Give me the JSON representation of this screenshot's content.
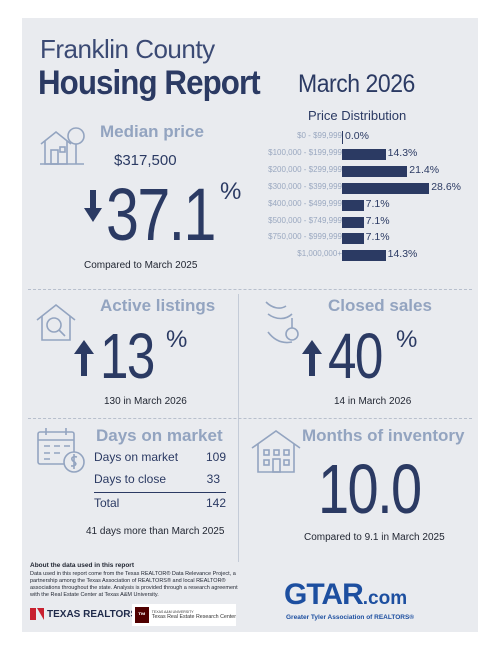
{
  "header": {
    "county": "Franklin County",
    "report": "Housing Report",
    "month": "March 2026"
  },
  "price_distribution": {
    "title": "Price Distribution",
    "rows": [
      {
        "label": "$0 - $99,999",
        "value": "0.0%",
        "pct": 0.0
      },
      {
        "label": "$100,000 - $199,999",
        "value": "14.3%",
        "pct": 14.3
      },
      {
        "label": "$200,000 - $299,999",
        "value": "21.4%",
        "pct": 21.4
      },
      {
        "label": "$300,000 - $399,999",
        "value": "28.6%",
        "pct": 28.6
      },
      {
        "label": "$400,000 - $499,999",
        "value": "7.1%",
        "pct": 7.1
      },
      {
        "label": "$500,000 - $749,999",
        "value": "7.1%",
        "pct": 7.1
      },
      {
        "label": "$750,000 - $999,999",
        "value": "7.1%",
        "pct": 7.1
      },
      {
        "label": "$1,000,000+",
        "value": "14.3%",
        "pct": 14.3
      }
    ]
  },
  "median_price": {
    "title": "Median price",
    "value": "$317,500",
    "change": "37.1",
    "unit": "%",
    "direction": "down",
    "caption": "Compared to March 2025"
  },
  "active_listings": {
    "title": "Active listings",
    "change": "13",
    "unit": "%",
    "direction": "up",
    "caption": "130 in March 2026"
  },
  "closed_sales": {
    "title": "Closed sales",
    "change": "40",
    "unit": "%",
    "direction": "up",
    "caption": "14 in March 2026"
  },
  "days_on_market": {
    "title": "Days on market",
    "rows": [
      {
        "label": "Days on market",
        "value": "109"
      },
      {
        "label": "Days to close",
        "value": "33"
      }
    ],
    "total_label": "Total",
    "total_value": "142",
    "caption": "41 days more than March 2025"
  },
  "months_inventory": {
    "title": "Months of inventory",
    "value": "10.0",
    "caption": "Compared to 9.1 in March 2025"
  },
  "about": {
    "title": "About the data used in this report",
    "text": "Data used in this report come from the Texas REALTOR® Data Relevance Project, a partnership among the Texas Association of REALTORS® and local REALTOR® associations throughout the state. Analysis is provided through a research agreement with the Real Estate Center at Texas A&M University."
  },
  "logos": {
    "texas_realtors": "TEXAS REALTORS",
    "tamu_small": "TEXAS A&M UNIVERSITY",
    "research_center": "Texas Real Estate Research Center",
    "gtar": "GTAR",
    "gtar_com": ".com",
    "gtar_tagline": "Greater Tyler Association of REALTORS®"
  },
  "colors": {
    "navy": "#2b3a63",
    "muted": "#93a4c0",
    "background": "#e9ebef",
    "gtar_blue": "#1d4fa0",
    "gtar_red": "#d2232a"
  }
}
